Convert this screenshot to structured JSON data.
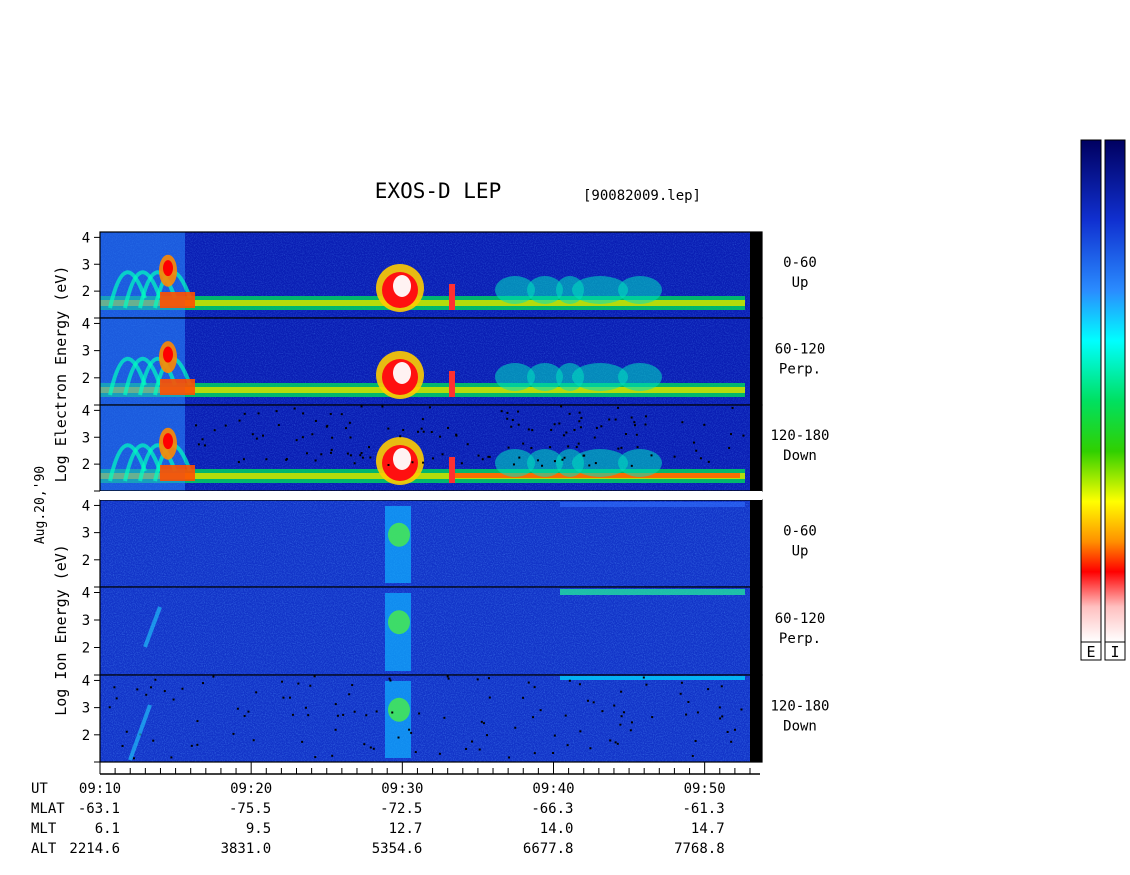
{
  "chart_data": {
    "type": "heatmap",
    "title": "EXOS-D LEP",
    "file_label": "[90082009.lep]",
    "date_label": "Aug.20,'90",
    "electron_ylabel": "Log Electron Energy (eV)",
    "ion_ylabel": "Log Ion Energy (eV)",
    "yticks": [
      "4",
      "3",
      "2"
    ],
    "time_ticks": [
      "09:10",
      "09:20",
      "09:30",
      "09:40",
      "09:50"
    ],
    "time_range_min": [
      0,
      43
    ],
    "ylim": [
      1,
      4.2
    ],
    "panels": [
      {
        "species": "electron",
        "pitch": "0-60",
        "direction": "Up"
      },
      {
        "species": "electron",
        "pitch": "60-120",
        "direction": "Perp."
      },
      {
        "species": "electron",
        "pitch": "120-180",
        "direction": "Down"
      },
      {
        "species": "ion",
        "pitch": "0-60",
        "direction": "Up"
      },
      {
        "species": "ion",
        "pitch": "60-120",
        "direction": "Perp."
      },
      {
        "species": "ion",
        "pitch": "120-180",
        "direction": "Down"
      }
    ],
    "orbit_table": {
      "labels": [
        "UT",
        "MLAT",
        "MLT",
        "ALT"
      ],
      "columns": [
        {
          "MLAT": "-63.1",
          "MLT": "6.1",
          "ALT": "2214.6"
        },
        {
          "MLAT": "-75.5",
          "MLT": "9.5",
          "ALT": "3831.0"
        },
        {
          "MLAT": "-72.5",
          "MLT": "12.7",
          "ALT": "5354.6"
        },
        {
          "MLAT": "-66.3",
          "MLT": "14.0",
          "ALT": "6677.8"
        },
        {
          "MLAT": "-61.3",
          "MLT": "14.7",
          "ALT": "7768.8"
        }
      ]
    },
    "colorbar_labels": [
      "E",
      "I"
    ],
    "colormap": [
      "#ffffff",
      "#ff0000",
      "#ff8c00",
      "#ffff00",
      "#00cc00",
      "#00ffff",
      "#0060ff",
      "#0000a0"
    ]
  }
}
